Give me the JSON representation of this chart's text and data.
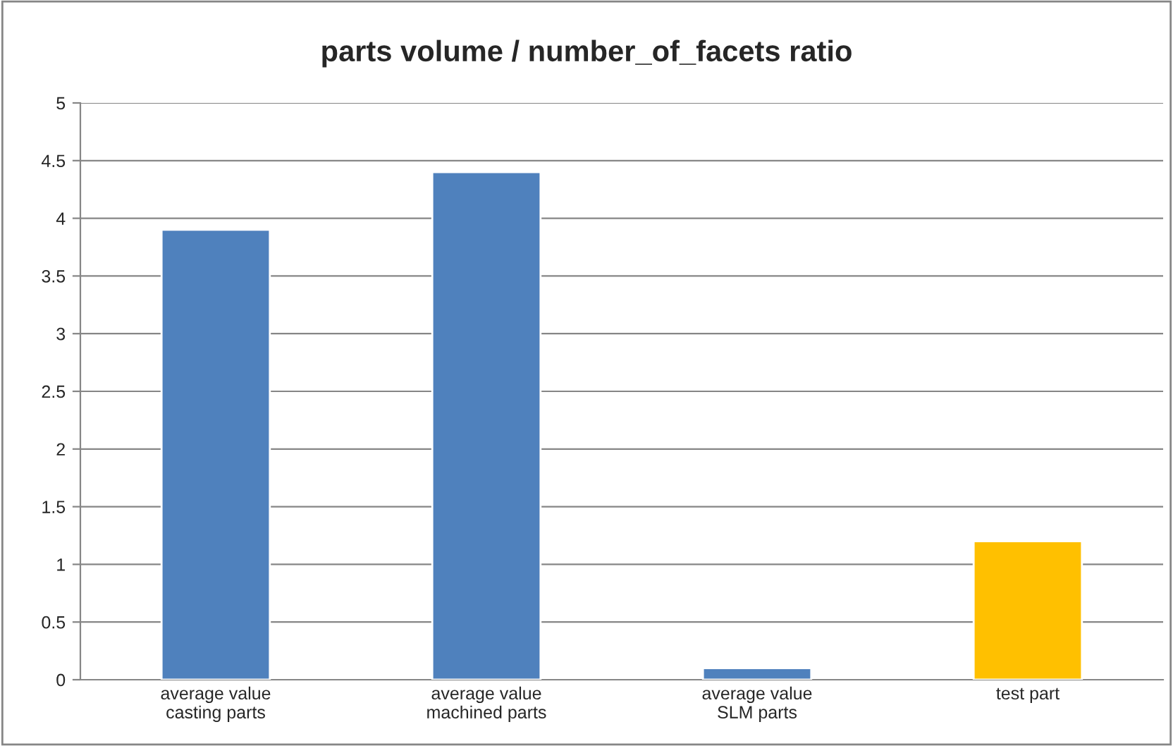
{
  "chart_data": {
    "type": "bar",
    "title": "parts volume / number_of_facets ratio",
    "categories": [
      "average value\ncasting parts",
      "average value\nmachined parts",
      "average value\nSLM parts",
      "test part"
    ],
    "values": [
      3.9,
      4.4,
      0.1,
      1.2
    ],
    "colors": [
      "#4f81bd",
      "#4f81bd",
      "#4f81bd",
      "#ffc000"
    ],
    "ylim": [
      0,
      5
    ],
    "yticks": [
      0,
      0.5,
      1,
      1.5,
      2,
      2.5,
      3,
      3.5,
      4,
      4.5,
      5
    ],
    "grid": "y"
  }
}
